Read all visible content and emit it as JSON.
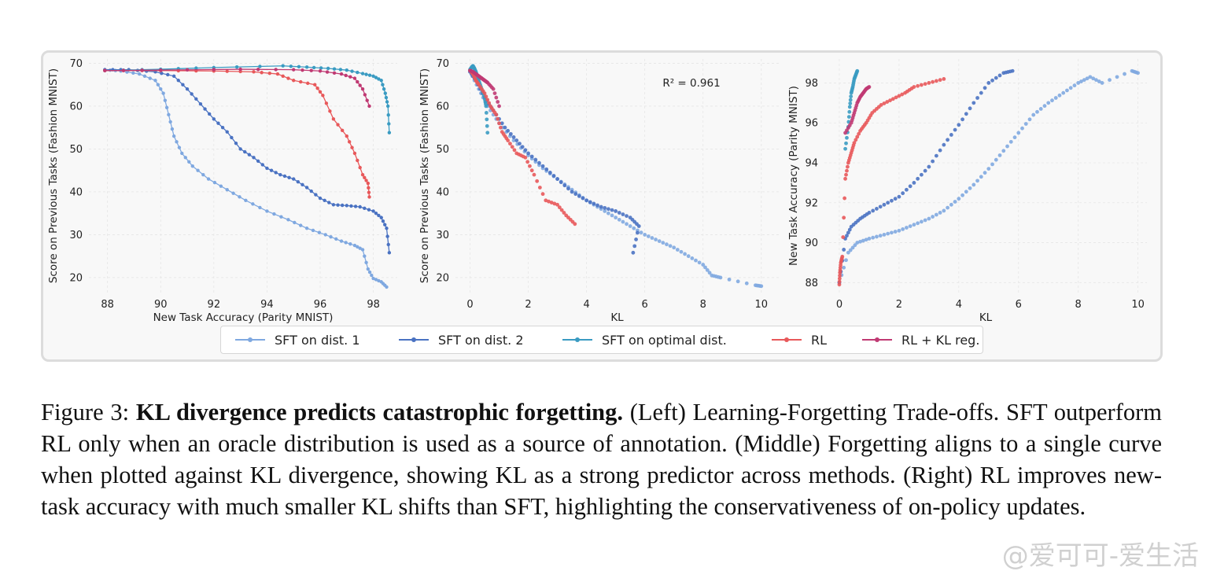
{
  "chart_data": [
    {
      "type": "line",
      "xlabel": "New Task Accuracy (Parity MNIST)",
      "ylabel": "Score on Previous Tasks (Fashion MNIST)",
      "xlim": [
        87.3,
        98.9
      ],
      "ylim": [
        16.5,
        71
      ],
      "xticks": [
        88,
        90,
        92,
        94,
        96,
        98
      ],
      "yticks": [
        20,
        30,
        40,
        50,
        60,
        70
      ],
      "grid": true,
      "series": [
        {
          "name": "SFT on dist. 1",
          "color": "#7fa8e0",
          "x": [
            87.9,
            88.5,
            89.2,
            89.8,
            90.1,
            90.3,
            90.5,
            90.8,
            91.2,
            91.8,
            92.5,
            93.2,
            94.0,
            94.8,
            95.5,
            96.2,
            96.8,
            97.3,
            97.6,
            97.8,
            98.0,
            98.3,
            98.5
          ],
          "y": [
            68.5,
            68.2,
            67.5,
            66.0,
            63.0,
            58.0,
            53.0,
            49.0,
            46.0,
            43.0,
            40.5,
            38.0,
            35.5,
            33.5,
            31.5,
            30.0,
            28.5,
            27.5,
            26.5,
            22.0,
            19.8,
            19.0,
            17.8
          ]
        },
        {
          "name": "SFT on dist. 2",
          "color": "#4a72c2",
          "x": [
            87.9,
            88.8,
            89.8,
            90.5,
            91.0,
            91.5,
            92.0,
            92.5,
            93.0,
            93.5,
            94.0,
            94.5,
            95.0,
            95.5,
            96.0,
            96.5,
            97.0,
            97.5,
            98.0,
            98.3,
            98.5,
            98.6
          ],
          "y": [
            68.5,
            68.5,
            68.0,
            67.0,
            64.0,
            60.5,
            57.0,
            54.0,
            50.0,
            48.0,
            45.5,
            44.0,
            43.0,
            41.0,
            38.5,
            37.0,
            36.8,
            36.5,
            35.5,
            34.0,
            31.5,
            25.8
          ]
        },
        {
          "name": "SFT on optimal dist.",
          "color": "#3a9bc2",
          "x": [
            87.9,
            90.0,
            92.0,
            94.6,
            95.5,
            96.3,
            97.0,
            97.6,
            98.0,
            98.3,
            98.45,
            98.55,
            98.6
          ],
          "y": [
            68.3,
            68.6,
            69.0,
            69.4,
            69.1,
            68.8,
            68.4,
            67.6,
            67.0,
            66.0,
            63.0,
            60.0,
            53.8
          ]
        },
        {
          "name": "RL",
          "color": "#e8585a",
          "x": [
            87.9,
            90.0,
            92.0,
            93.5,
            94.4,
            95.0,
            95.8,
            96.1,
            96.5,
            97.0,
            97.3,
            97.6,
            97.8,
            97.85
          ],
          "y": [
            68.3,
            68.3,
            68.2,
            68.0,
            67.5,
            66.0,
            65.0,
            62.5,
            57.0,
            53.0,
            49.0,
            44.0,
            42.0,
            38.8
          ]
        },
        {
          "name": "RL + KL reg.",
          "color": "#c03a73",
          "x": [
            87.9,
            90.0,
            93.0,
            95.0,
            96.0,
            96.8,
            97.3,
            97.6,
            97.85
          ],
          "y": [
            68.3,
            68.4,
            68.6,
            68.5,
            68.2,
            67.5,
            66.5,
            64.0,
            60.0
          ]
        }
      ]
    },
    {
      "type": "scatter",
      "xlabel": "KL",
      "ylabel": "Score on Previous Tasks (Fashion MNIST)",
      "annotation": "R² = 0.961",
      "xlim": [
        -0.5,
        10.6
      ],
      "ylim": [
        16.5,
        71
      ],
      "xticks": [
        0,
        2,
        4,
        6,
        8,
        10
      ],
      "yticks": [
        20,
        30,
        40,
        50,
        60,
        70
      ],
      "grid": true,
      "series": [
        {
          "name": "SFT on dist. 1",
          "color": "#7fa8e0",
          "x": [
            0.0,
            0.3,
            0.6,
            1.0,
            1.5,
            2.0,
            2.5,
            3.0,
            3.5,
            4.0,
            4.5,
            5.0,
            5.5,
            6.0,
            6.5,
            7.0,
            7.5,
            8.0,
            8.3,
            8.6,
            9.8,
            10.0
          ],
          "y": [
            68.0,
            64.0,
            60.0,
            56.0,
            52.0,
            48.5,
            45.5,
            43.0,
            40.5,
            38.0,
            36.0,
            34.0,
            32.0,
            30.0,
            28.5,
            27.0,
            25.0,
            23.0,
            20.5,
            20.0,
            18.2,
            18.0
          ]
        },
        {
          "name": "SFT on dist. 2",
          "color": "#4a72c2",
          "x": [
            0.0,
            0.2,
            0.5,
            0.8,
            1.2,
            1.6,
            2.0,
            2.5,
            3.0,
            3.5,
            4.0,
            4.5,
            5.0,
            5.5,
            5.8,
            5.6
          ],
          "y": [
            68.0,
            66.0,
            62.0,
            59.0,
            55.0,
            52.0,
            49.0,
            46.0,
            43.0,
            40.0,
            38.0,
            36.5,
            35.5,
            34.0,
            32.0,
            25.8
          ]
        },
        {
          "name": "SFT on optimal dist.",
          "color": "#3a9bc2",
          "x": [
            0.0,
            0.05,
            0.1,
            0.15,
            0.2,
            0.25,
            0.3,
            0.4,
            0.5,
            0.55,
            0.6
          ],
          "y": [
            68.5,
            69.0,
            69.4,
            68.8,
            68.0,
            67.0,
            66.0,
            64.0,
            62.0,
            60.0,
            53.8
          ]
        },
        {
          "name": "RL",
          "color": "#e8585a",
          "x": [
            0.0,
            0.1,
            0.2,
            0.3,
            0.5,
            0.7,
            0.9,
            1.1,
            1.3,
            1.6,
            1.9,
            2.2,
            2.6,
            3.0,
            3.3,
            3.6
          ],
          "y": [
            68.3,
            67.5,
            66.0,
            65.0,
            63.0,
            60.0,
            58.0,
            54.0,
            52.0,
            49.0,
            48.0,
            44.0,
            38.0,
            37.0,
            34.5,
            32.5
          ]
        },
        {
          "name": "RL + KL reg.",
          "color": "#c03a73",
          "x": [
            0.0,
            0.1,
            0.2,
            0.3,
            0.4,
            0.5,
            0.6,
            0.8,
            1.0
          ],
          "y": [
            68.3,
            68.0,
            67.5,
            67.0,
            66.5,
            66.0,
            65.5,
            64.0,
            60.0
          ]
        }
      ]
    },
    {
      "type": "scatter",
      "xlabel": "KL",
      "ylabel": "New Task Accuracy (Parity MNIST)",
      "xlim": [
        -0.5,
        10.3
      ],
      "ylim": [
        87.5,
        99.2
      ],
      "xticks": [
        0,
        2,
        4,
        6,
        8,
        10
      ],
      "yticks": [
        88,
        90,
        92,
        94,
        96,
        98
      ],
      "grid": true,
      "series": [
        {
          "name": "SFT on dist. 1",
          "color": "#7fa8e0",
          "x": [
            0.0,
            0.3,
            0.6,
            1.0,
            1.5,
            2.0,
            2.5,
            3.0,
            3.5,
            4.0,
            4.5,
            5.0,
            5.5,
            6.0,
            6.5,
            7.0,
            7.5,
            8.0,
            8.4,
            8.8,
            9.8,
            10.0
          ],
          "y": [
            88.0,
            89.5,
            90.0,
            90.2,
            90.4,
            90.6,
            90.9,
            91.2,
            91.6,
            92.2,
            92.9,
            93.7,
            94.6,
            95.5,
            96.4,
            97.0,
            97.5,
            98.0,
            98.3,
            98.0,
            98.6,
            98.5
          ]
        },
        {
          "name": "SFT on dist. 2",
          "color": "#4a72c2",
          "x": [
            0.0,
            0.2,
            0.4,
            0.7,
            1.0,
            1.5,
            2.0,
            2.5,
            3.0,
            3.5,
            4.0,
            4.5,
            5.0,
            5.5,
            5.8
          ],
          "y": [
            88.0,
            90.2,
            90.8,
            91.2,
            91.5,
            91.9,
            92.3,
            93.0,
            93.8,
            94.9,
            95.9,
            97.0,
            98.0,
            98.5,
            98.6
          ]
        },
        {
          "name": "SFT on optimal dist.",
          "color": "#3a9bc2",
          "x": [
            0.2,
            0.3,
            0.35,
            0.4,
            0.45,
            0.5,
            0.55,
            0.6
          ],
          "y": [
            94.7,
            95.8,
            96.8,
            97.5,
            97.8,
            98.2,
            98.4,
            98.6
          ]
        },
        {
          "name": "RL",
          "color": "#e8585a",
          "x": [
            0.0,
            0.02,
            0.05,
            0.1,
            0.2,
            0.3,
            0.4,
            0.5,
            0.7,
            0.9,
            1.1,
            1.4,
            1.8,
            2.2,
            2.5,
            3.0,
            3.5
          ],
          "y": [
            87.9,
            88.5,
            89.0,
            89.3,
            93.2,
            94.0,
            94.5,
            95.0,
            95.6,
            96.0,
            96.5,
            96.9,
            97.2,
            97.5,
            97.8,
            98.0,
            98.2
          ]
        },
        {
          "name": "RL + KL reg.",
          "color": "#c03a73",
          "x": [
            0.2,
            0.4,
            0.5,
            0.6,
            0.7,
            0.8,
            0.9,
            1.0
          ],
          "y": [
            95.5,
            96.0,
            96.5,
            97.0,
            97.3,
            97.5,
            97.7,
            97.8
          ]
        }
      ]
    }
  ],
  "legend": {
    "placement": "bottom-center",
    "items": [
      {
        "label": "SFT on dist. 1",
        "color": "#7fa8e0"
      },
      {
        "label": "SFT on dist. 2",
        "color": "#4a72c2"
      },
      {
        "label": "SFT on optimal dist.",
        "color": "#3a9bc2"
      },
      {
        "label": "RL",
        "color": "#e8585a"
      },
      {
        "label": "RL + KL reg.",
        "color": "#c03a73"
      }
    ]
  },
  "caption": {
    "prefix": "Figure 3: ",
    "bold": "KL divergence predicts catastrophic forgetting.",
    "text": " (Left) Learning-Forgetting Trade-offs. SFT outperform RL only when an oracle distribution is used as a source of annotation. (Middle) Forgetting aligns to a single curve when plotted against KL divergence, showing KL as a strong predictor across methods. (Right) RL improves new-task accuracy with much smaller KL shifts than SFT, highlighting the conservativeness of on-policy updates."
  },
  "watermark": "@爱可可-爱生活"
}
